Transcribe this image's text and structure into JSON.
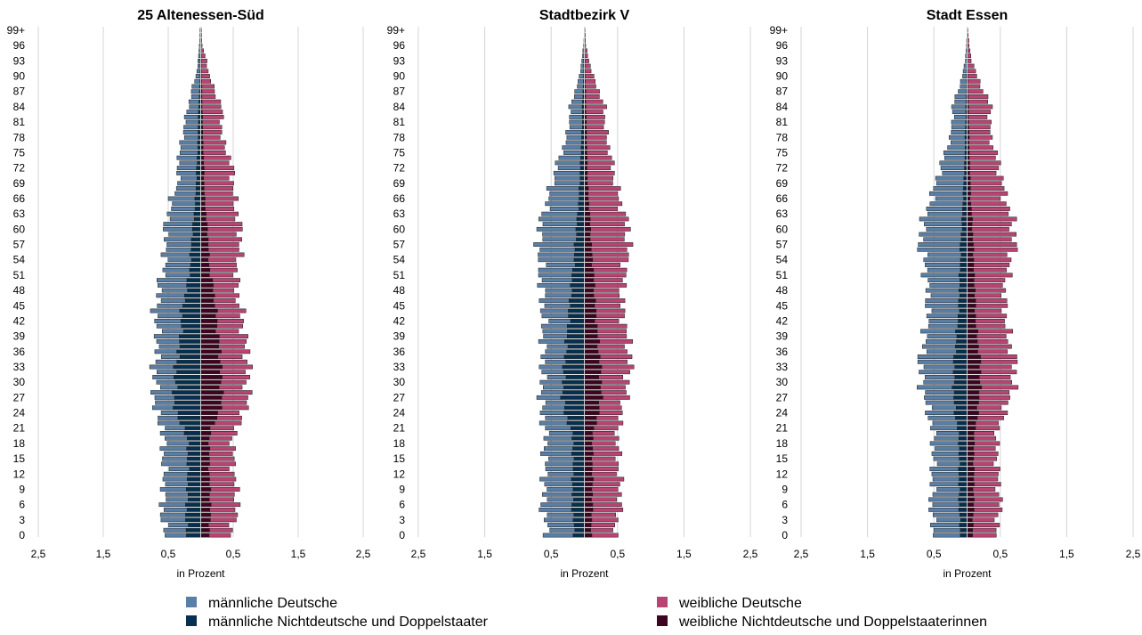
{
  "x_axis": {
    "label": "in Prozent",
    "tick_labels": [
      "2,5",
      "1,5",
      "0,5",
      "0,5",
      "1,5",
      "2,5"
    ],
    "xlim": [
      -2.5,
      2.5
    ]
  },
  "y_tick_labels": [
    "99+",
    "96",
    "93",
    "90",
    "87",
    "84",
    "81",
    "78",
    "75",
    "72",
    "69",
    "66",
    "63",
    "60",
    "57",
    "54",
    "51",
    "48",
    "45",
    "42",
    "39",
    "36",
    "33",
    "30",
    "27",
    "24",
    "21",
    "18",
    "15",
    "12",
    "9",
    "6",
    "3",
    "0"
  ],
  "legend": [
    {
      "label": "männliche Deutsche",
      "color": "#5a7fa6"
    },
    {
      "label": "männliche Nichtdeutsche und Doppelstaater",
      "color": "#06304f"
    },
    {
      "label": "weibliche Deutsche",
      "color": "#b94474"
    },
    {
      "label": "weibliche Nichtdeutsche und Doppelstaaterinnen",
      "color": "#3e0420"
    }
  ],
  "chart_data": [
    {
      "type": "bar",
      "orientation": "horizontal",
      "stacked": true,
      "title": "25 Altenessen-Süd",
      "xlabel": "in Prozent",
      "unit": "%",
      "age_groups": "0 … 99+ in 1-year steps (100 bars)",
      "xlim": [
        -2.5,
        2.5
      ],
      "grid": true,
      "ctrl_ages": [
        0,
        6,
        9,
        12,
        18,
        21,
        24,
        27,
        30,
        33,
        36,
        39,
        42,
        45,
        48,
        51,
        54,
        57,
        60,
        63,
        66,
        69,
        72,
        75,
        78,
        81,
        84,
        87,
        90,
        93,
        96,
        99
      ],
      "series": [
        {
          "name": "männliche Deutsche",
          "values": [
            0.33,
            0.38,
            0.36,
            0.36,
            0.38,
            0.32,
            0.3,
            0.3,
            0.3,
            0.33,
            0.32,
            0.35,
            0.4,
            0.4,
            0.42,
            0.42,
            0.38,
            0.4,
            0.42,
            0.4,
            0.36,
            0.28,
            0.28,
            0.3,
            0.22,
            0.22,
            0.15,
            0.13,
            0.06,
            0.03,
            0.02,
            0.01
          ]
        },
        {
          "name": "männliche Nichtdeutsche und Doppelstaater",
          "values": [
            0.22,
            0.22,
            0.2,
            0.2,
            0.2,
            0.25,
            0.4,
            0.4,
            0.4,
            0.38,
            0.35,
            0.3,
            0.3,
            0.28,
            0.22,
            0.18,
            0.15,
            0.15,
            0.12,
            0.1,
            0.08,
            0.07,
            0.06,
            0.05,
            0.04,
            0.04,
            0.03,
            0.02,
            0.01,
            0.01,
            0.0,
            0.0
          ]
        },
        {
          "name": "weibliche Deutsche",
          "values": [
            0.33,
            0.42,
            0.4,
            0.38,
            0.36,
            0.38,
            0.38,
            0.4,
            0.4,
            0.42,
            0.42,
            0.4,
            0.4,
            0.38,
            0.35,
            0.4,
            0.45,
            0.5,
            0.5,
            0.48,
            0.45,
            0.45,
            0.43,
            0.38,
            0.28,
            0.3,
            0.3,
            0.2,
            0.12,
            0.08,
            0.02,
            0.01
          ]
        },
        {
          "name": "weibliche Nichtdeutsche und Doppelstaaterinnen",
          "values": [
            0.13,
            0.15,
            0.14,
            0.13,
            0.13,
            0.15,
            0.3,
            0.32,
            0.32,
            0.3,
            0.3,
            0.26,
            0.25,
            0.22,
            0.2,
            0.15,
            0.12,
            0.12,
            0.1,
            0.08,
            0.06,
            0.05,
            0.05,
            0.04,
            0.03,
            0.03,
            0.02,
            0.02,
            0.01,
            0.01,
            0.0,
            0.0
          ]
        }
      ]
    },
    {
      "type": "bar",
      "orientation": "horizontal",
      "stacked": true,
      "title": "Stadtbezirk V",
      "xlabel": "in Prozent",
      "unit": "%",
      "age_groups": "0 … 99+ in 1-year steps (100 bars)",
      "xlim": [
        -2.5,
        2.5
      ],
      "grid": true,
      "ctrl_ages": [
        0,
        6,
        9,
        12,
        18,
        21,
        24,
        27,
        30,
        33,
        36,
        39,
        42,
        45,
        48,
        51,
        54,
        57,
        60,
        63,
        66,
        69,
        72,
        75,
        78,
        81,
        84,
        87,
        90,
        93,
        96,
        99
      ],
      "series": [
        {
          "name": "männliche Deutsche",
          "values": [
            0.4,
            0.45,
            0.42,
            0.42,
            0.42,
            0.38,
            0.35,
            0.32,
            0.32,
            0.32,
            0.34,
            0.36,
            0.38,
            0.4,
            0.44,
            0.48,
            0.52,
            0.55,
            0.55,
            0.52,
            0.46,
            0.42,
            0.36,
            0.3,
            0.22,
            0.2,
            0.18,
            0.12,
            0.06,
            0.03,
            0.01,
            0.0
          ]
        },
        {
          "name": "männliche Nichtdeutsche und Doppelstaater",
          "values": [
            0.15,
            0.18,
            0.18,
            0.17,
            0.17,
            0.2,
            0.3,
            0.32,
            0.32,
            0.3,
            0.28,
            0.26,
            0.24,
            0.22,
            0.2,
            0.18,
            0.15,
            0.14,
            0.12,
            0.1,
            0.08,
            0.07,
            0.06,
            0.05,
            0.04,
            0.03,
            0.03,
            0.02,
            0.01,
            0.01,
            0.0,
            0.0
          ]
        },
        {
          "name": "weibliche Deutsche",
          "values": [
            0.35,
            0.42,
            0.42,
            0.4,
            0.38,
            0.36,
            0.34,
            0.36,
            0.4,
            0.44,
            0.46,
            0.44,
            0.42,
            0.4,
            0.42,
            0.46,
            0.52,
            0.56,
            0.56,
            0.52,
            0.46,
            0.42,
            0.38,
            0.35,
            0.3,
            0.28,
            0.28,
            0.2,
            0.12,
            0.06,
            0.02,
            0.01
          ]
        },
        {
          "name": "weibliche Nichtdeutsche und Doppelstaaterinnen",
          "values": [
            0.1,
            0.12,
            0.12,
            0.12,
            0.12,
            0.14,
            0.22,
            0.25,
            0.25,
            0.24,
            0.22,
            0.2,
            0.18,
            0.16,
            0.15,
            0.14,
            0.12,
            0.1,
            0.09,
            0.08,
            0.06,
            0.05,
            0.04,
            0.04,
            0.03,
            0.03,
            0.02,
            0.02,
            0.01,
            0.01,
            0.0,
            0.0
          ]
        }
      ]
    },
    {
      "type": "bar",
      "orientation": "horizontal",
      "stacked": true,
      "title": "Stadt Essen",
      "xlabel": "in Prozent",
      "unit": "%",
      "age_groups": "0 … 99+ in 1-year steps (100 bars)",
      "xlim": [
        -2.5,
        2.5
      ],
      "grid": true,
      "ctrl_ages": [
        0,
        6,
        9,
        12,
        18,
        21,
        24,
        27,
        30,
        33,
        36,
        39,
        42,
        45,
        48,
        51,
        54,
        57,
        60,
        63,
        66,
        69,
        72,
        75,
        78,
        81,
        84,
        87,
        90,
        93,
        96,
        99
      ],
      "series": [
        {
          "name": "männliche Deutsche",
          "values": [
            0.4,
            0.42,
            0.4,
            0.4,
            0.38,
            0.38,
            0.4,
            0.44,
            0.48,
            0.5,
            0.5,
            0.46,
            0.46,
            0.46,
            0.48,
            0.5,
            0.55,
            0.6,
            0.6,
            0.55,
            0.48,
            0.42,
            0.36,
            0.3,
            0.22,
            0.2,
            0.2,
            0.13,
            0.06,
            0.03,
            0.01,
            0.0
          ]
        },
        {
          "name": "männliche Nichtdeutsche und Doppelstaater",
          "values": [
            0.1,
            0.12,
            0.12,
            0.12,
            0.12,
            0.14,
            0.18,
            0.2,
            0.2,
            0.2,
            0.18,
            0.16,
            0.14,
            0.12,
            0.12,
            0.11,
            0.1,
            0.1,
            0.08,
            0.07,
            0.06,
            0.05,
            0.04,
            0.03,
            0.03,
            0.02,
            0.02,
            0.01,
            0.01,
            0.0,
            0.0,
            0.0
          ]
        },
        {
          "name": "weibliche Deutsche",
          "values": [
            0.35,
            0.4,
            0.38,
            0.36,
            0.34,
            0.34,
            0.4,
            0.46,
            0.5,
            0.52,
            0.5,
            0.46,
            0.46,
            0.44,
            0.44,
            0.5,
            0.56,
            0.62,
            0.62,
            0.58,
            0.52,
            0.48,
            0.44,
            0.4,
            0.32,
            0.32,
            0.34,
            0.24,
            0.14,
            0.07,
            0.03,
            0.01
          ]
        },
        {
          "name": "weibliche Nichtdeutsche und Doppelstaaterinnen",
          "values": [
            0.08,
            0.1,
            0.1,
            0.1,
            0.1,
            0.12,
            0.16,
            0.18,
            0.2,
            0.2,
            0.18,
            0.15,
            0.13,
            0.12,
            0.12,
            0.1,
            0.1,
            0.09,
            0.08,
            0.07,
            0.05,
            0.05,
            0.04,
            0.03,
            0.03,
            0.02,
            0.02,
            0.01,
            0.01,
            0.0,
            0.0,
            0.0
          ]
        }
      ]
    }
  ]
}
